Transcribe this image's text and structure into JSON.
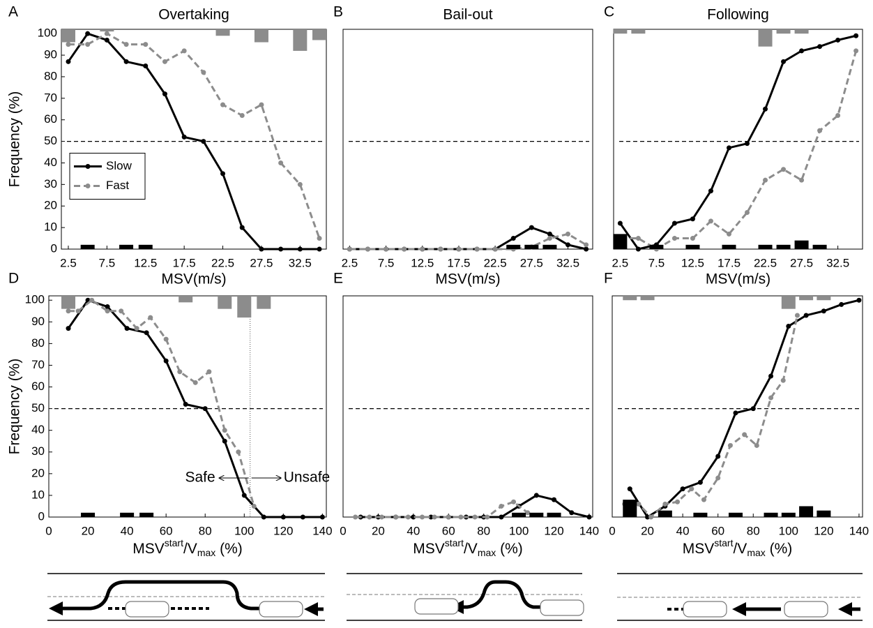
{
  "chart_data": [
    {
      "type": "line",
      "panel": "A",
      "title": "Overtaking",
      "x_label": "MSV(m/s)",
      "y_label": "Frequency (%)",
      "xlim": [
        1.6,
        35.9
      ],
      "ylim": [
        0,
        102
      ],
      "xticks": [
        2.5,
        7.5,
        12.5,
        17.5,
        22.5,
        27.5,
        32.5
      ],
      "yticks": [
        0,
        10,
        20,
        30,
        40,
        50,
        60,
        70,
        80,
        90,
        100
      ],
      "x": [
        2.5,
        5,
        7.5,
        10,
        12.5,
        15,
        17.5,
        20,
        22.5,
        25,
        27.5,
        30,
        32.5,
        35
      ],
      "hline": 50,
      "legend": "center left",
      "series": [
        {
          "name": "Slow",
          "color": "#000000",
          "values": [
            87,
            100,
            97,
            87,
            85,
            72,
            52,
            50,
            35,
            10,
            0,
            0,
            0,
            0
          ]
        },
        {
          "name": "Fast",
          "color": "#8c8c8c",
          "dash": true,
          "values": [
            95,
            95,
            100,
            95,
            95,
            87,
            92,
            82,
            67,
            62,
            67,
            40,
            30,
            5
          ]
        },
        {
          "type": "bar",
          "color": "#000000",
          "values": [
            null,
            2,
            null,
            2,
            2,
            null,
            null,
            null,
            null,
            null,
            null,
            null,
            null,
            null
          ]
        },
        {
          "type": "bar",
          "color": "#8c8c8c",
          "from": "top",
          "values": [
            6,
            null,
            1,
            null,
            null,
            null,
            null,
            null,
            3,
            null,
            6,
            null,
            10,
            5
          ]
        }
      ]
    },
    {
      "type": "line",
      "panel": "B",
      "title": "Bail-out",
      "x_label": "MSV(m/s)",
      "xlim": [
        1.6,
        35.9
      ],
      "ylim": [
        0,
        102
      ],
      "xticks": [
        2.5,
        7.5,
        12.5,
        17.5,
        22.5,
        27.5,
        32.5
      ],
      "x": [
        2.5,
        5,
        7.5,
        10,
        12.5,
        15,
        17.5,
        20,
        22.5,
        25,
        27.5,
        30,
        32.5,
        35
      ],
      "hline": 50,
      "series": [
        {
          "color": "#000000",
          "values": [
            0,
            0,
            0,
            0,
            0,
            0,
            0,
            0,
            0,
            5,
            10,
            7,
            2,
            0
          ]
        },
        {
          "color": "#8c8c8c",
          "dash": true,
          "values": [
            0,
            0,
            0,
            0,
            0,
            0,
            0,
            0,
            0,
            0,
            1,
            5,
            7,
            2
          ]
        },
        {
          "type": "bar",
          "color": "#000000",
          "values": [
            null,
            null,
            null,
            null,
            null,
            null,
            null,
            null,
            null,
            2,
            2,
            2,
            null,
            null
          ]
        }
      ]
    },
    {
      "type": "line",
      "panel": "C",
      "title": "Following",
      "x_label": "MSV(m/s)",
      "xlim": [
        1.6,
        35.9
      ],
      "ylim": [
        0,
        102
      ],
      "xticks": [
        2.5,
        7.5,
        12.5,
        17.5,
        22.5,
        27.5,
        32.5
      ],
      "x": [
        2.5,
        5,
        7.5,
        10,
        12.5,
        15,
        17.5,
        20,
        22.5,
        25,
        27.5,
        30,
        32.5,
        35
      ],
      "hline": 50,
      "series": [
        {
          "color": "#000000",
          "values": [
            12,
            0,
            2,
            12,
            14,
            27,
            47,
            49,
            65,
            87,
            92,
            94,
            97,
            99
          ]
        },
        {
          "color": "#8c8c8c",
          "dash": true,
          "values": [
            5,
            5,
            0,
            5,
            5,
            13,
            7,
            17,
            32,
            37,
            32,
            55,
            62,
            92
          ]
        },
        {
          "type": "bar",
          "color": "#000000",
          "values": [
            7,
            null,
            2,
            null,
            2,
            null,
            2,
            null,
            2,
            2,
            4,
            2,
            null,
            null
          ]
        },
        {
          "type": "bar",
          "color": "#8c8c8c",
          "from": "top",
          "values": [
            2,
            2,
            null,
            null,
            null,
            null,
            null,
            null,
            8,
            2,
            2,
            null,
            null,
            null
          ]
        }
      ]
    },
    {
      "type": "line",
      "panel": "D",
      "x_label": {
        "base": "MSV",
        "sup": "start",
        "mid": "/V",
        "sub": "max",
        "tail": " (%)"
      },
      "y_label": "Frequency (%)",
      "xlim": [
        0,
        142
      ],
      "ylim": [
        0,
        102
      ],
      "xticks": [
        0,
        20,
        40,
        60,
        80,
        100,
        120,
        140
      ],
      "yticks": [
        0,
        10,
        20,
        30,
        40,
        50,
        60,
        70,
        80,
        90,
        100
      ],
      "x": [
        10,
        20,
        30,
        40,
        50,
        60,
        70,
        80,
        90,
        100,
        110,
        120,
        130,
        140
      ],
      "hline": 50,
      "vline": 103,
      "annotations": [
        "Safe",
        "Unsafe"
      ],
      "series": [
        {
          "color": "#000000",
          "values": [
            87,
            100,
            97,
            87,
            85,
            72,
            52,
            50,
            35,
            10,
            0,
            0,
            0,
            0
          ]
        },
        {
          "color": "#8c8c8c",
          "dash": true,
          "x": [
            10,
            15,
            22,
            30,
            37,
            45,
            52,
            60,
            67,
            75,
            82,
            90,
            97,
            105
          ],
          "values": [
            95,
            95,
            100,
            95,
            95,
            87,
            92,
            82,
            67,
            62,
            67,
            40,
            30,
            5
          ]
        },
        {
          "type": "bar",
          "color": "#000000",
          "values": [
            null,
            2,
            null,
            2,
            2,
            null,
            null,
            null,
            null,
            null,
            null,
            null,
            null,
            null
          ]
        },
        {
          "type": "bar",
          "color": "#8c8c8c",
          "from": "top",
          "values": [
            6,
            null,
            null,
            null,
            null,
            null,
            3,
            null,
            6,
            10,
            6,
            null,
            null,
            null
          ]
        }
      ]
    },
    {
      "type": "line",
      "panel": "E",
      "x_label": {
        "base": "MSV",
        "sup": "start",
        "mid": "/V",
        "sub": "max",
        "tail": " (%)"
      },
      "xlim": [
        0,
        142
      ],
      "ylim": [
        0,
        102
      ],
      "xticks": [
        0,
        20,
        40,
        60,
        80,
        100,
        120,
        140
      ],
      "x": [
        10,
        20,
        30,
        40,
        50,
        60,
        70,
        80,
        90,
        100,
        110,
        120,
        130,
        140
      ],
      "hline": 50,
      "series": [
        {
          "color": "#000000",
          "values": [
            0,
            0,
            0,
            0,
            0,
            0,
            0,
            0,
            0,
            5,
            10,
            8,
            2,
            0
          ]
        },
        {
          "color": "#8c8c8c",
          "dash": true,
          "x": [
            7,
            15,
            22,
            30,
            37,
            45,
            52,
            60,
            67,
            75,
            82,
            90,
            97,
            105
          ],
          "values": [
            0,
            0,
            0,
            0,
            0,
            0,
            0,
            0,
            0,
            0,
            0,
            5,
            7,
            2
          ]
        },
        {
          "type": "bar",
          "color": "#000000",
          "values": [
            null,
            null,
            null,
            null,
            null,
            null,
            null,
            null,
            null,
            2,
            2,
            2,
            null,
            null
          ]
        }
      ]
    },
    {
      "type": "line",
      "panel": "F",
      "x_label": {
        "base": "MSV",
        "sup": "start",
        "mid": "/V",
        "sub": "max",
        "tail": " (%)"
      },
      "xlim": [
        0,
        142
      ],
      "ylim": [
        0,
        102
      ],
      "xticks": [
        0,
        20,
        40,
        60,
        80,
        100,
        120,
        140
      ],
      "x": [
        10,
        20,
        30,
        40,
        50,
        60,
        70,
        80,
        90,
        100,
        110,
        120,
        130,
        140
      ],
      "hline": 50,
      "series": [
        {
          "color": "#000000",
          "values": [
            13,
            0,
            5,
            13,
            16,
            28,
            48,
            50,
            65,
            88,
            93,
            95,
            98,
            100
          ]
        },
        {
          "color": "#8c8c8c",
          "dash": true,
          "x": [
            7,
            15,
            22,
            30,
            37,
            45,
            52,
            60,
            67,
            75,
            82,
            90,
            97,
            105
          ],
          "values": [
            6,
            6,
            0,
            6,
            7,
            13,
            8,
            18,
            33,
            38,
            33,
            55,
            63,
            93
          ]
        },
        {
          "type": "bar",
          "color": "#000000",
          "values": [
            8,
            null,
            3,
            null,
            2,
            null,
            2,
            null,
            2,
            2,
            5,
            3,
            null,
            null
          ]
        },
        {
          "type": "bar",
          "color": "#8c8c8c",
          "from": "top",
          "values": [
            2,
            2,
            null,
            null,
            null,
            null,
            null,
            null,
            null,
            6,
            2,
            2,
            null,
            null
          ]
        }
      ]
    }
  ]
}
